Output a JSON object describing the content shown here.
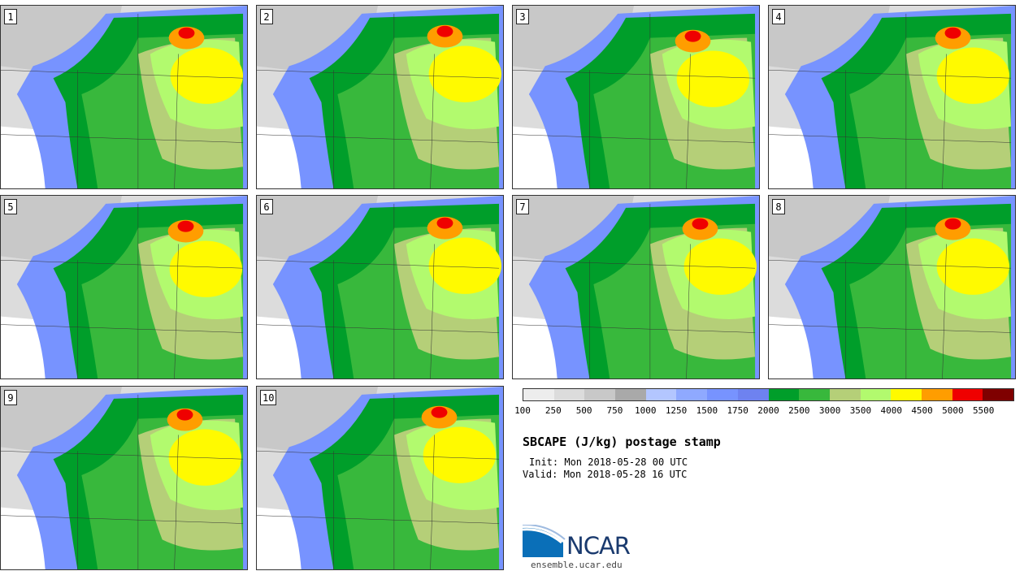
{
  "panels": [
    {
      "label": "1"
    },
    {
      "label": "2"
    },
    {
      "label": "3"
    },
    {
      "label": "4"
    },
    {
      "label": "5"
    },
    {
      "label": "6"
    },
    {
      "label": "7"
    },
    {
      "label": "8"
    },
    {
      "label": "9"
    },
    {
      "label": "10"
    }
  ],
  "colorbar": {
    "colors": [
      "#ededed",
      "#dcdcdc",
      "#c8c8c8",
      "#a9a9a9",
      "#b3c6ff",
      "#8fa9ff",
      "#7793ff",
      "#6e82f0",
      "#009e2a",
      "#38b83c",
      "#b5cf78",
      "#b2fa6e",
      "#fffa00",
      "#ff9d00",
      "#ef0000",
      "#7f0000"
    ],
    "labels": [
      "100",
      "250",
      "500",
      "750",
      "1000",
      "1250",
      "1500",
      "1750",
      "2000",
      "2500",
      "3000",
      "3500",
      "4000",
      "4500",
      "5000",
      "5500"
    ]
  },
  "title": "SBCAPE (J/kg) postage stamp",
  "init": "Init: Mon 2018-05-28 00 UTC",
  "valid": "Valid: Mon 2018-05-28 16 UTC",
  "logo": {
    "name": "NCAR",
    "url": "ensemble.ucar.edu"
  }
}
